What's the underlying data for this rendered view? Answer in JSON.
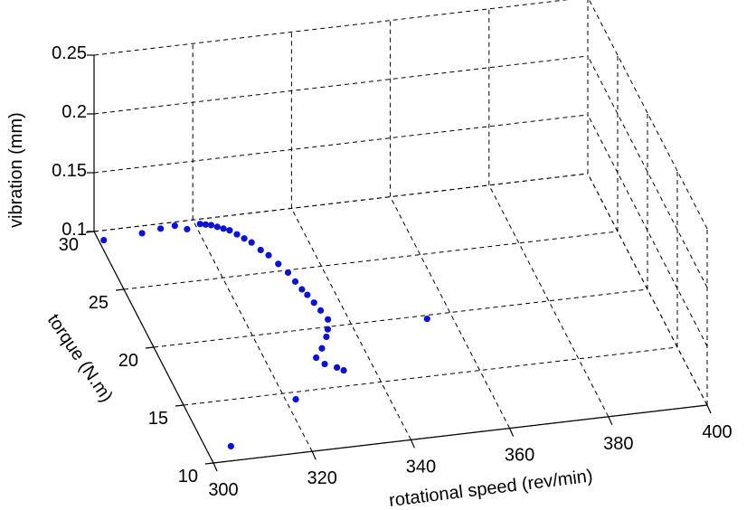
{
  "chart_data": {
    "type": "scatter",
    "projection": "3d",
    "title": "",
    "xlabel": "rotational speed (rev/min)",
    "ylabel": "torque (N.m)",
    "zlabel": "vibration (mm)",
    "xlim": [
      300,
      400
    ],
    "ylim": [
      10,
      30
    ],
    "zlim": [
      0.1,
      0.25
    ],
    "xticks": [
      "300",
      "320",
      "340",
      "360",
      "380",
      "400"
    ],
    "yticks": [
      "10",
      "15",
      "20",
      "25",
      "30"
    ],
    "zticks": [
      "0.1",
      "0.15",
      "0.2",
      "0.25"
    ],
    "grid": true,
    "marker_color": "#0a12d8",
    "series": [
      {
        "values": [
          [
            301,
            29.2,
            0.1
          ],
          [
            309,
            29.4,
            0.1
          ],
          [
            313,
            29.6,
            0.1
          ],
          [
            316,
            29.7,
            0.1
          ],
          [
            318,
            29.3,
            0.1
          ],
          [
            321,
            29.6,
            0.1
          ],
          [
            322,
            29.5,
            0.1
          ],
          [
            323,
            29.4,
            0.1
          ],
          [
            324,
            29.2,
            0.1
          ],
          [
            325,
            29.0,
            0.1
          ],
          [
            326,
            28.8,
            0.1
          ],
          [
            327,
            28.4,
            0.1
          ],
          [
            328,
            28.0,
            0.1
          ],
          [
            329,
            27.6,
            0.1
          ],
          [
            330,
            26.9,
            0.1
          ],
          [
            331,
            26.4,
            0.1
          ],
          [
            332,
            25.6,
            0.1
          ],
          [
            333,
            24.8,
            0.1
          ],
          [
            333.5,
            24.0,
            0.1
          ],
          [
            334,
            23.3,
            0.1
          ],
          [
            334.5,
            22.8,
            0.1
          ],
          [
            335,
            22.1,
            0.1
          ],
          [
            335.5,
            21.4,
            0.1
          ],
          [
            336,
            20.6,
            0.1
          ],
          [
            335,
            19.8,
            0.1
          ],
          [
            334,
            19.2,
            0.1
          ],
          [
            332,
            18.3,
            0.1
          ],
          [
            330,
            17.6,
            0.1
          ],
          [
            331,
            17.0,
            0.1
          ],
          [
            333,
            16.6,
            0.1
          ],
          [
            355,
            19.7,
            0.1
          ],
          [
            322,
            14.4,
            0.1
          ],
          [
            334,
            16.3,
            0.1
          ],
          [
            305,
            11.2,
            0.1
          ]
        ]
      }
    ]
  }
}
